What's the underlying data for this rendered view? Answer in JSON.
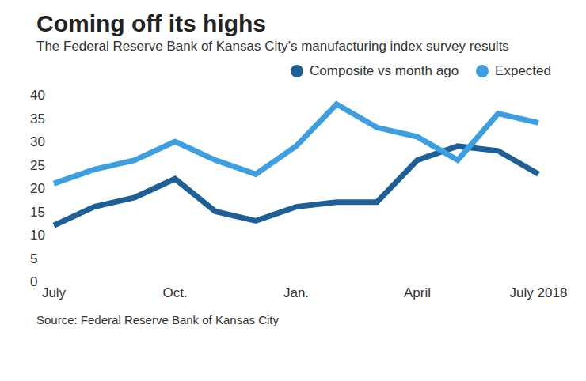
{
  "chart_data": {
    "type": "line",
    "title": "Coming off its highs",
    "subtitle": "The Federal Reserve Bank of Kansas City’s manufacturing index survey results",
    "source": "Source: Federal Reserve Bank of Kansas City",
    "categories": [
      "July",
      null,
      null,
      "Oct.",
      null,
      null,
      "Jan.",
      null,
      null,
      "April",
      null,
      null,
      "July 2018"
    ],
    "series": [
      {
        "name": "Composite vs month ago",
        "color": "#1d5f96",
        "values": [
          12,
          16,
          18,
          22,
          15,
          13,
          16,
          17,
          17,
          26,
          29,
          28,
          23
        ]
      },
      {
        "name": "Expected",
        "color": "#3d9fe0",
        "values": [
          21,
          24,
          26,
          30,
          26,
          23,
          29,
          38,
          33,
          31,
          26,
          36,
          34
        ]
      }
    ],
    "ylim": [
      0,
      40
    ],
    "yticks": [
      0,
      5,
      10,
      15,
      20,
      25,
      30,
      35,
      40
    ],
    "grid": false,
    "legend": "top-right"
  }
}
